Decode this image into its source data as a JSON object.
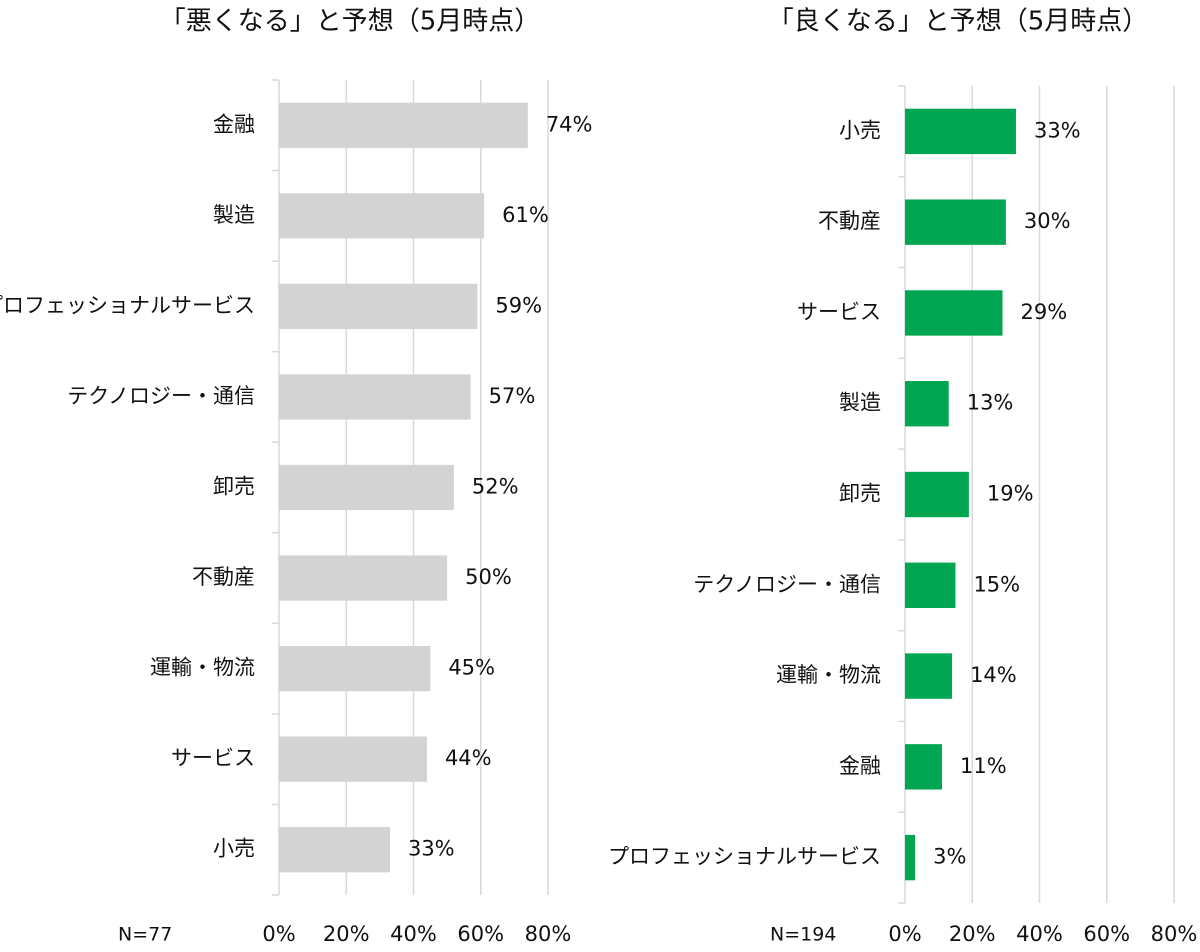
{
  "chart_data": [
    {
      "type": "bar",
      "orientation": "horizontal",
      "title": "「悪くなる」と予想（5月時点）",
      "note": "N=77",
      "categories": [
        "金融",
        "製造",
        "プロフェッショナルサービス",
        "テクノロジー・通信",
        "卸売",
        "不動産",
        "運輸・物流",
        "サービス",
        "小売"
      ],
      "values": [
        74,
        61,
        59,
        57,
        52,
        50,
        45,
        44,
        33
      ],
      "value_labels": [
        "74%",
        "61%",
        "59%",
        "57%",
        "52%",
        "50%",
        "45%",
        "44%",
        "33%"
      ],
      "color": "#d3d3d3",
      "xlim": [
        0,
        80
      ],
      "xticks": [
        {
          "value": 0,
          "label": "0%"
        },
        {
          "value": 20,
          "label": "20%"
        },
        {
          "value": 40,
          "label": "40%"
        },
        {
          "value": 60,
          "label": "60%"
        },
        {
          "value": 80,
          "label": "80%"
        }
      ],
      "grid": true
    },
    {
      "type": "bar",
      "orientation": "horizontal",
      "title": "「良くなる」と予想（5月時点）",
      "note": "N=194",
      "categories": [
        "小売",
        "不動産",
        "サービス",
        "製造",
        "卸売",
        "テクノロジー・通信",
        "運輸・物流",
        "金融",
        "プロフェッショナルサービス"
      ],
      "values": [
        33,
        30,
        29,
        13,
        19,
        15,
        14,
        11,
        3
      ],
      "value_labels": [
        "33%",
        "30%",
        "29%",
        "13%",
        "19%",
        "15%",
        "14%",
        "11%",
        "3%"
      ],
      "color": "#00a651",
      "xlim": [
        0,
        80
      ],
      "xticks": [
        {
          "value": 0,
          "label": "0%"
        },
        {
          "value": 20,
          "label": "20%"
        },
        {
          "value": 40,
          "label": "40%"
        },
        {
          "value": 60,
          "label": "60%"
        },
        {
          "value": 80,
          "label": "80%"
        }
      ],
      "grid": true
    }
  ]
}
